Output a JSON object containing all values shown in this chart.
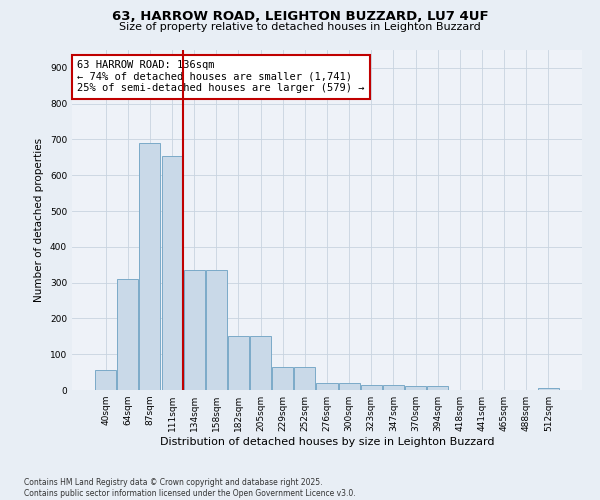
{
  "title1": "63, HARROW ROAD, LEIGHTON BUZZARD, LU7 4UF",
  "title2": "Size of property relative to detached houses in Leighton Buzzard",
  "xlabel": "Distribution of detached houses by size in Leighton Buzzard",
  "ylabel": "Number of detached properties",
  "categories": [
    "40sqm",
    "64sqm",
    "87sqm",
    "111sqm",
    "134sqm",
    "158sqm",
    "182sqm",
    "205sqm",
    "229sqm",
    "252sqm",
    "276sqm",
    "300sqm",
    "323sqm",
    "347sqm",
    "370sqm",
    "394sqm",
    "418sqm",
    "441sqm",
    "465sqm",
    "488sqm",
    "512sqm"
  ],
  "values": [
    55,
    310,
    690,
    655,
    335,
    335,
    150,
    150,
    65,
    65,
    20,
    20,
    15,
    15,
    10,
    10,
    0,
    0,
    0,
    0,
    5
  ],
  "bar_color": "#c9d9e8",
  "bar_edge_color": "#7aaac8",
  "vline_x": 3.5,
  "vline_color": "#c00000",
  "annotation_text": "63 HARROW ROAD: 136sqm\n← 74% of detached houses are smaller (1,741)\n25% of semi-detached houses are larger (579) →",
  "annotation_box_color": "white",
  "annotation_box_edge_color": "#c00000",
  "ylim": [
    0,
    950
  ],
  "yticks": [
    0,
    100,
    200,
    300,
    400,
    500,
    600,
    700,
    800,
    900
  ],
  "footer": "Contains HM Land Registry data © Crown copyright and database right 2025.\nContains public sector information licensed under the Open Government Licence v3.0.",
  "bg_color": "#e8eef5",
  "plot_bg_color": "#eef2f8",
  "grid_color": "#c8d4e0"
}
